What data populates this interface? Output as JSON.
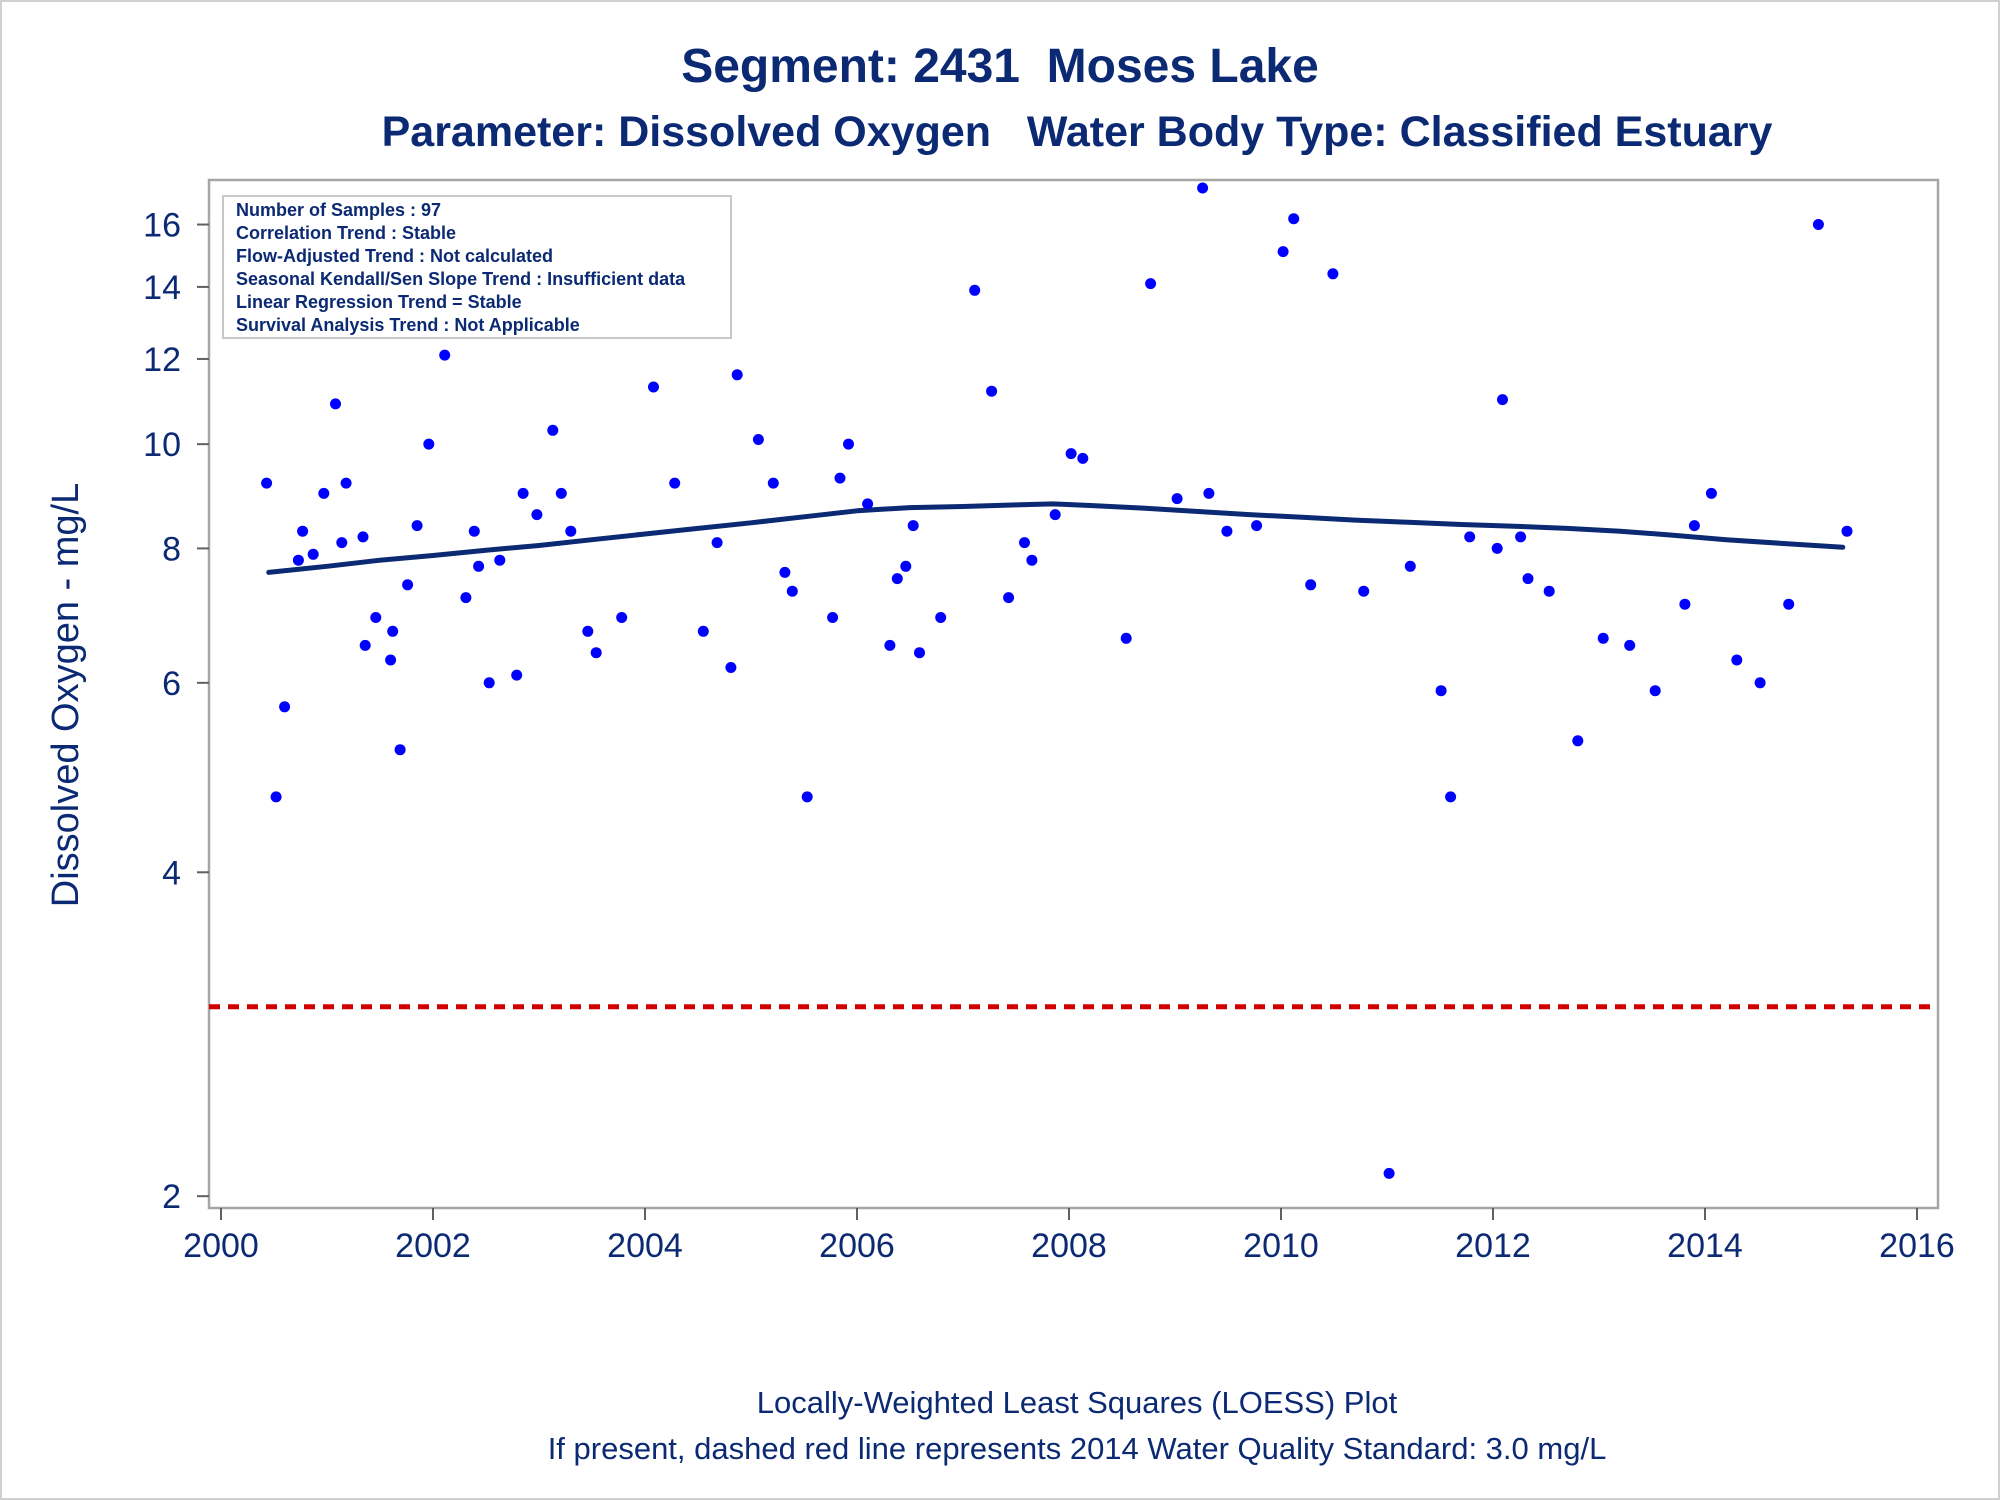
{
  "chart_data": {
    "type": "scatter",
    "title": "Segment: 2431  Moses Lake",
    "subtitle": "Parameter: Dissolved Oxygen   Water Body Type: Classified Estuary",
    "ylabel": "Dissolved Oxygen - mg/L",
    "y_scale": "log",
    "xlim": [
      2000,
      2016
    ],
    "ylim": [
      1.95,
      17.6
    ],
    "x_ticks": [
      "2000",
      "2002",
      "2004",
      "2006",
      "2008",
      "2010",
      "2012",
      "2014",
      "2016"
    ],
    "y_ticks": [
      "2",
      "4",
      "6",
      "8",
      "10",
      "12",
      "14",
      "16"
    ],
    "legend_box": {
      "placement": "top-left",
      "lines": [
        "Number of Samples : 97",
        "Correlation Trend : Stable",
        "Flow-Adjusted Trend : Not calculated",
        "Seasonal Kendall/Sen Slope Trend : Insufficient data",
        "Linear Regression Trend = Stable",
        "Survival Analysis Trend : Not Applicable"
      ]
    },
    "standard_line": {
      "value": 3.0,
      "color": "#d00000",
      "style": "dashed"
    },
    "points_color": "#0000ff",
    "points": [
      [
        2000.43,
        9.2
      ],
      [
        2000.52,
        4.7
      ],
      [
        2000.6,
        5.7
      ],
      [
        2000.73,
        7.8
      ],
      [
        2000.77,
        8.3
      ],
      [
        2000.87,
        7.9
      ],
      [
        2000.97,
        9.0
      ],
      [
        2001.08,
        10.9
      ],
      [
        2001.14,
        8.1
      ],
      [
        2001.18,
        9.2
      ],
      [
        2001.34,
        8.2
      ],
      [
        2001.36,
        6.5
      ],
      [
        2001.46,
        6.9
      ],
      [
        2001.6,
        6.3
      ],
      [
        2001.62,
        6.7
      ],
      [
        2001.69,
        5.2
      ],
      [
        2001.76,
        7.4
      ],
      [
        2001.85,
        8.4
      ],
      [
        2001.96,
        10.0
      ],
      [
        2002.11,
        12.1
      ],
      [
        2002.31,
        7.2
      ],
      [
        2002.39,
        8.3
      ],
      [
        2002.43,
        7.7
      ],
      [
        2002.53,
        6.0
      ],
      [
        2002.63,
        7.8
      ],
      [
        2002.79,
        6.1
      ],
      [
        2002.85,
        9.0
      ],
      [
        2002.98,
        8.6
      ],
      [
        2003.13,
        10.3
      ],
      [
        2003.21,
        9.0
      ],
      [
        2003.3,
        8.3
      ],
      [
        2003.46,
        6.7
      ],
      [
        2003.54,
        6.4
      ],
      [
        2003.78,
        6.9
      ],
      [
        2004.08,
        11.3
      ],
      [
        2004.28,
        9.2
      ],
      [
        2004.55,
        6.7
      ],
      [
        2004.68,
        8.1
      ],
      [
        2004.81,
        6.2
      ],
      [
        2004.87,
        11.6
      ],
      [
        2005.07,
        10.1
      ],
      [
        2005.21,
        9.2
      ],
      [
        2005.32,
        7.6
      ],
      [
        2005.39,
        7.3
      ],
      [
        2005.53,
        4.7
      ],
      [
        2005.77,
        6.9
      ],
      [
        2005.84,
        9.3
      ],
      [
        2005.92,
        10.0
      ],
      [
        2006.1,
        8.8
      ],
      [
        2006.31,
        6.5
      ],
      [
        2006.38,
        7.5
      ],
      [
        2006.46,
        7.7
      ],
      [
        2006.53,
        8.4
      ],
      [
        2006.59,
        6.4
      ],
      [
        2006.79,
        6.9
      ],
      [
        2007.11,
        13.9
      ],
      [
        2007.27,
        11.2
      ],
      [
        2007.43,
        7.2
      ],
      [
        2007.58,
        8.1
      ],
      [
        2007.65,
        7.8
      ],
      [
        2007.87,
        8.6
      ],
      [
        2008.02,
        9.8
      ],
      [
        2008.13,
        9.7
      ],
      [
        2008.54,
        6.6
      ],
      [
        2008.77,
        14.1
      ],
      [
        2009.02,
        8.9
      ],
      [
        2009.26,
        17.3
      ],
      [
        2009.32,
        9.0
      ],
      [
        2009.49,
        8.3
      ],
      [
        2009.77,
        8.4
      ],
      [
        2010.02,
        15.1
      ],
      [
        2010.12,
        16.2
      ],
      [
        2010.28,
        7.4
      ],
      [
        2010.49,
        14.4
      ],
      [
        2010.78,
        7.3
      ],
      [
        2011.02,
        2.1
      ],
      [
        2011.22,
        7.7
      ],
      [
        2011.51,
        5.9
      ],
      [
        2011.6,
        4.7
      ],
      [
        2011.78,
        8.2
      ],
      [
        2012.04,
        8.0
      ],
      [
        2012.09,
        11.0
      ],
      [
        2012.26,
        8.2
      ],
      [
        2012.33,
        7.5
      ],
      [
        2012.53,
        7.3
      ],
      [
        2012.8,
        5.3
      ],
      [
        2013.04,
        6.6
      ],
      [
        2013.29,
        6.5
      ],
      [
        2013.53,
        5.9
      ],
      [
        2013.81,
        7.1
      ],
      [
        2013.9,
        8.4
      ],
      [
        2014.06,
        9.0
      ],
      [
        2014.3,
        6.3
      ],
      [
        2014.52,
        6.0
      ],
      [
        2014.79,
        7.1
      ],
      [
        2015.07,
        16.0
      ],
      [
        2015.34,
        8.3
      ]
    ],
    "loess_color": "#0b2a73",
    "loess": [
      [
        2000.45,
        7.6
      ],
      [
        2001.0,
        7.7
      ],
      [
        2001.5,
        7.8
      ],
      [
        2002.0,
        7.88
      ],
      [
        2002.5,
        7.97
      ],
      [
        2003.0,
        8.05
      ],
      [
        2003.5,
        8.15
      ],
      [
        2004.0,
        8.25
      ],
      [
        2004.5,
        8.35
      ],
      [
        2005.0,
        8.45
      ],
      [
        2005.5,
        8.56
      ],
      [
        2006.0,
        8.67
      ],
      [
        2006.5,
        8.73
      ],
      [
        2007.0,
        8.75
      ],
      [
        2007.5,
        8.78
      ],
      [
        2007.85,
        8.8
      ],
      [
        2008.2,
        8.77
      ],
      [
        2008.7,
        8.72
      ],
      [
        2009.2,
        8.66
      ],
      [
        2009.7,
        8.6
      ],
      [
        2010.2,
        8.55
      ],
      [
        2010.7,
        8.5
      ],
      [
        2011.2,
        8.46
      ],
      [
        2011.7,
        8.42
      ],
      [
        2012.2,
        8.39
      ],
      [
        2012.7,
        8.35
      ],
      [
        2013.2,
        8.3
      ],
      [
        2013.7,
        8.23
      ],
      [
        2014.2,
        8.15
      ],
      [
        2014.7,
        8.09
      ],
      [
        2015.3,
        8.02
      ]
    ]
  },
  "footnote": {
    "line1": "Locally-Weighted Least Squares (LOESS) Plot",
    "line2": "If present, dashed red line represents 2014 Water Quality Standard: 3.0 mg/L"
  }
}
